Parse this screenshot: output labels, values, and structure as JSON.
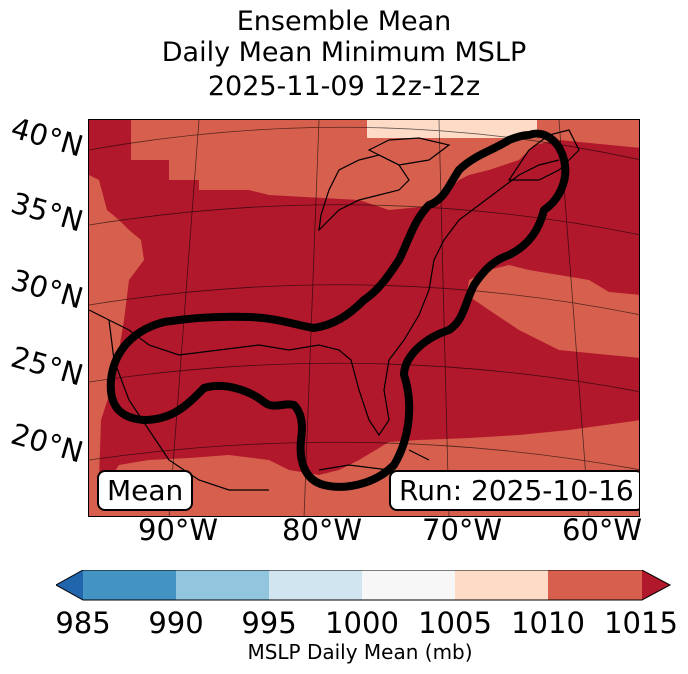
{
  "title": {
    "line1": "Ensemble Mean",
    "line2": "Daily Mean Minimum MSLP",
    "line3": "2025-11-09 12z-12z"
  },
  "map": {
    "latitude_labels": [
      "40°N",
      "35°N",
      "30°N",
      "25°N",
      "20°N"
    ],
    "longitude_labels": [
      "90°W",
      "80°W",
      "70°W",
      "60°W"
    ],
    "mean_label": "Mean",
    "run_label": "Run: 2025-10-16",
    "contour_description_color": "#000000",
    "fill_colors": {
      "1005-1010": "#fddbc7",
      "1010-1015": "#d6604d",
      "above-1015": "#b2182b"
    }
  },
  "colorbar": {
    "label": "MSLP Daily Mean (mb)",
    "ticks": [
      "985",
      "990",
      "995",
      "1000",
      "1005",
      "1010",
      "1015"
    ],
    "colors": [
      "#2166ac",
      "#4393c3",
      "#92c5de",
      "#d1e5f0",
      "#f7f7f7",
      "#fddbc7",
      "#d6604d",
      "#b2182b"
    ]
  }
}
